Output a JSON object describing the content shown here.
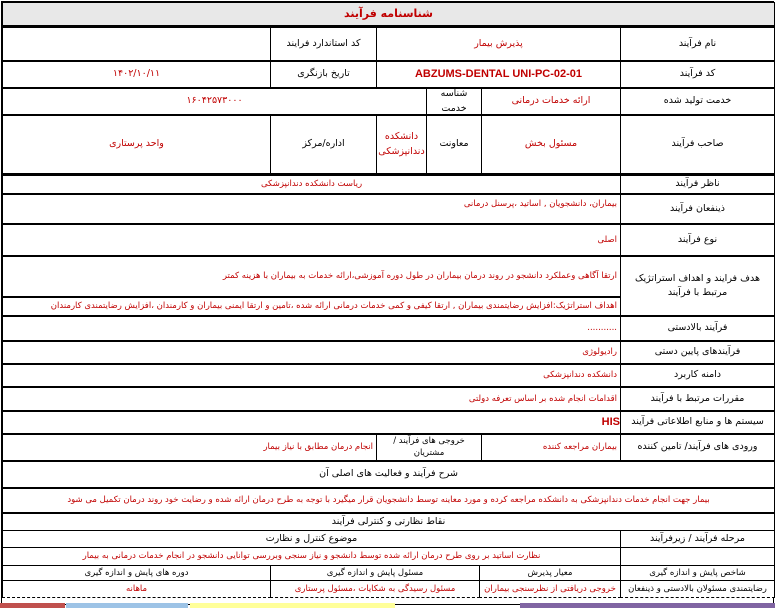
{
  "title": "شناسنامه فرآیند",
  "rows": {
    "name": {
      "label": "نام فرآیند",
      "value": "پذیرش بیمار",
      "std_code_label": "کد استاندارد فرایند",
      "std_code_value": ""
    },
    "code": {
      "label": "کد فرآیند",
      "value": "ABZUMS-DENTAL UNI-PC-02-01",
      "review_label": "تاریخ بازنگری",
      "review_value": "۱۴۰۲/۱۰/۱۱"
    },
    "service": {
      "label": "خدمت تولید شده",
      "value": "ارائه خدمات درمانی",
      "id_label": "شناسه خدمت",
      "id_value": "۱۶۰۴۲۵۷۳۰۰۰"
    },
    "owner": {
      "label": "صاحب فرآیند",
      "responsible": "مسئول بخش",
      "deputy_label": "معاونت",
      "deputy_value": "دانشکده دندانپزشکی",
      "office_label": "اداره/مرکز",
      "office_value": "واحد پرستاری"
    },
    "supervisor": {
      "label": "ناظر فرآیند",
      "value": "ریاست دانشکده دندانپزشکی"
    },
    "stakeholders": {
      "label": "ذینفعان فرآیند",
      "value": "بیماران، دانشجویان , اساتید ،پرسنل درمانی"
    },
    "type": {
      "label": "نوع فرآیند",
      "value": "اصلی"
    },
    "goal": {
      "label": "هدف فرایند و اهداف استراتژیک مرتبط با فرآیند",
      "value": "ارتقا آگاهی وعملکرد دانشجو در روند درمان بیماران در طول دوره آموزشی،ارائه خدمات به بیماران با هزینه کمتر",
      "strategic": "اهداف استراتژیک:افزایش رضایتمندی بیماران , ارتقا کیفی و کمی خدمات درمانی ارائه شده ،تامین و ارتقا ایمنی بیماران و کارمندان ،افزایش رضایتمندی کارمندان"
    },
    "upstream": {
      "label": "فرآیند بالادستی",
      "value": "..........."
    },
    "downstream": {
      "label": "فرآیندهای پایین دستی",
      "value": "رادیولوژی"
    },
    "scope": {
      "label": "دامنه کاربرد",
      "value": "دانشکده دندانپزشکی"
    },
    "regulations": {
      "label": "مقررات مرتبط با فرآیند",
      "value": "اقدامات انجام شده بر اساس تعرفه دولتی"
    },
    "systems": {
      "label": "سیستم ها و منابع اطلاعاتی فرآیند",
      "value": "HIS"
    },
    "inputs": {
      "label": "ورودی های فرآیند/ تامین کننده",
      "value": "بیماران مراجعه کننده",
      "outputs_label": "خروجی های فرآیند / مشتریان",
      "outputs_value": "انجام درمان مطابق با نیاز بیمار"
    }
  },
  "description": {
    "heading": "شرح فرآیند و فعالیت های اصلی آن",
    "text": "بیمار جهت انجام خدمات دندانپزشکی به دانشکده مراجعه کرده و مورد معاینه توسط دانشجویان قرار میگیرد با توجه به طرح درمان ارائه شده و رضایت خود روند درمان تکمیل می شود"
  },
  "control": {
    "heading": "نقاط نظارتی و کنترلی فرآیند",
    "stage_label": "مرحله فرآیند / زیرفرآیند",
    "subject_label": "موضوع کنترل و نظارت",
    "stage_value": "",
    "subject_value": "نظارت اساتید بر روی طرح درمان ارائه شده توسط دانشجو و نیاز سنجی وبررسی توانایی دانشجو در انجام خدمات درمانی به بیمار"
  },
  "monitoring": {
    "headers": [
      "شاخص پایش و اندازه گیری",
      "معیار پذیرش",
      "مسئول پایش و اندازه گیری",
      "دوره های پایش و اندازه گیری"
    ],
    "row": [
      "رضایتمندی مسئولان بالادستی و ذینفعان",
      "خروجی دریافتی از نظرسنجی بیماران",
      "مسئول رسیدگی به شکایات ،مسئول پرستاری",
      "ماهانه"
    ]
  },
  "colors": {
    "accent_text": "#c00000",
    "title_bg": "#e8e8e8"
  }
}
